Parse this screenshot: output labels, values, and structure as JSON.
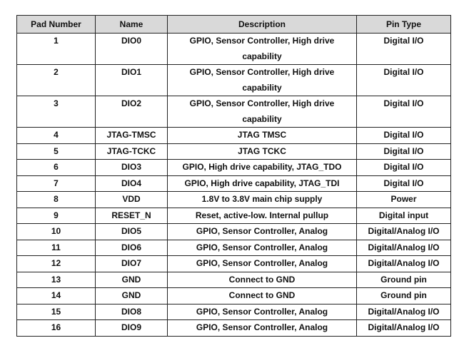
{
  "table": {
    "headers": [
      "Pad Number",
      "Name",
      "Description",
      "Pin Type"
    ],
    "rows": [
      {
        "pad": "1",
        "name": "DIO0",
        "description": "GPIO, Sensor Controller, High drive capability",
        "pin_type": "Digital I/O",
        "lines": 2
      },
      {
        "pad": "2",
        "name": "DIO1",
        "description": "GPIO, Sensor Controller, High drive capability",
        "pin_type": "Digital I/O",
        "lines": 2
      },
      {
        "pad": "3",
        "name": "DIO2",
        "description": "GPIO, Sensor Controller, High drive capability",
        "pin_type": "Digital I/O",
        "lines": 2
      },
      {
        "pad": "4",
        "name": "JTAG-TMSC",
        "description": "JTAG TMSC",
        "pin_type": "Digital I/O",
        "lines": 1
      },
      {
        "pad": "5",
        "name": "JTAG-TCKC",
        "description": "JTAG TCKC",
        "pin_type": "Digital I/O",
        "lines": 1
      },
      {
        "pad": "6",
        "name": "DIO3",
        "description": "GPIO, High drive capability, JTAG_TDO",
        "pin_type": "Digital I/O",
        "lines": 1
      },
      {
        "pad": "7",
        "name": "DIO4",
        "description": "GPIO, High drive capability, JTAG_TDI",
        "pin_type": "Digital I/O",
        "lines": 1
      },
      {
        "pad": "8",
        "name": "VDD",
        "description": "1.8V to 3.8V main chip supply",
        "pin_type": "Power",
        "lines": 1
      },
      {
        "pad": "9",
        "name": "RESET_N",
        "description": "Reset, active-low. Internal pullup",
        "pin_type": "Digital input",
        "lines": 1
      },
      {
        "pad": "10",
        "name": "DIO5",
        "description": "GPIO, Sensor Controller, Analog",
        "pin_type": "Digital/Analog I/O",
        "lines": 1
      },
      {
        "pad": "11",
        "name": "DIO6",
        "description": "GPIO, Sensor Controller, Analog",
        "pin_type": "Digital/Analog I/O",
        "lines": 1
      },
      {
        "pad": "12",
        "name": "DIO7",
        "description": "GPIO, Sensor Controller, Analog",
        "pin_type": "Digital/Analog I/O",
        "lines": 1
      },
      {
        "pad": "13",
        "name": "GND",
        "description": "Connect to GND",
        "pin_type": "Ground pin",
        "lines": 1
      },
      {
        "pad": "14",
        "name": "GND",
        "description": "Connect to GND",
        "pin_type": "Ground pin",
        "lines": 1
      },
      {
        "pad": "15",
        "name": "DIO8",
        "description": "GPIO, Sensor Controller, Analog",
        "pin_type": "Digital/Analog I/O",
        "lines": 1
      },
      {
        "pad": "16",
        "name": "DIO9",
        "description": "GPIO, Sensor Controller, Analog",
        "pin_type": "Digital/Analog I/O",
        "lines": 1
      }
    ]
  }
}
